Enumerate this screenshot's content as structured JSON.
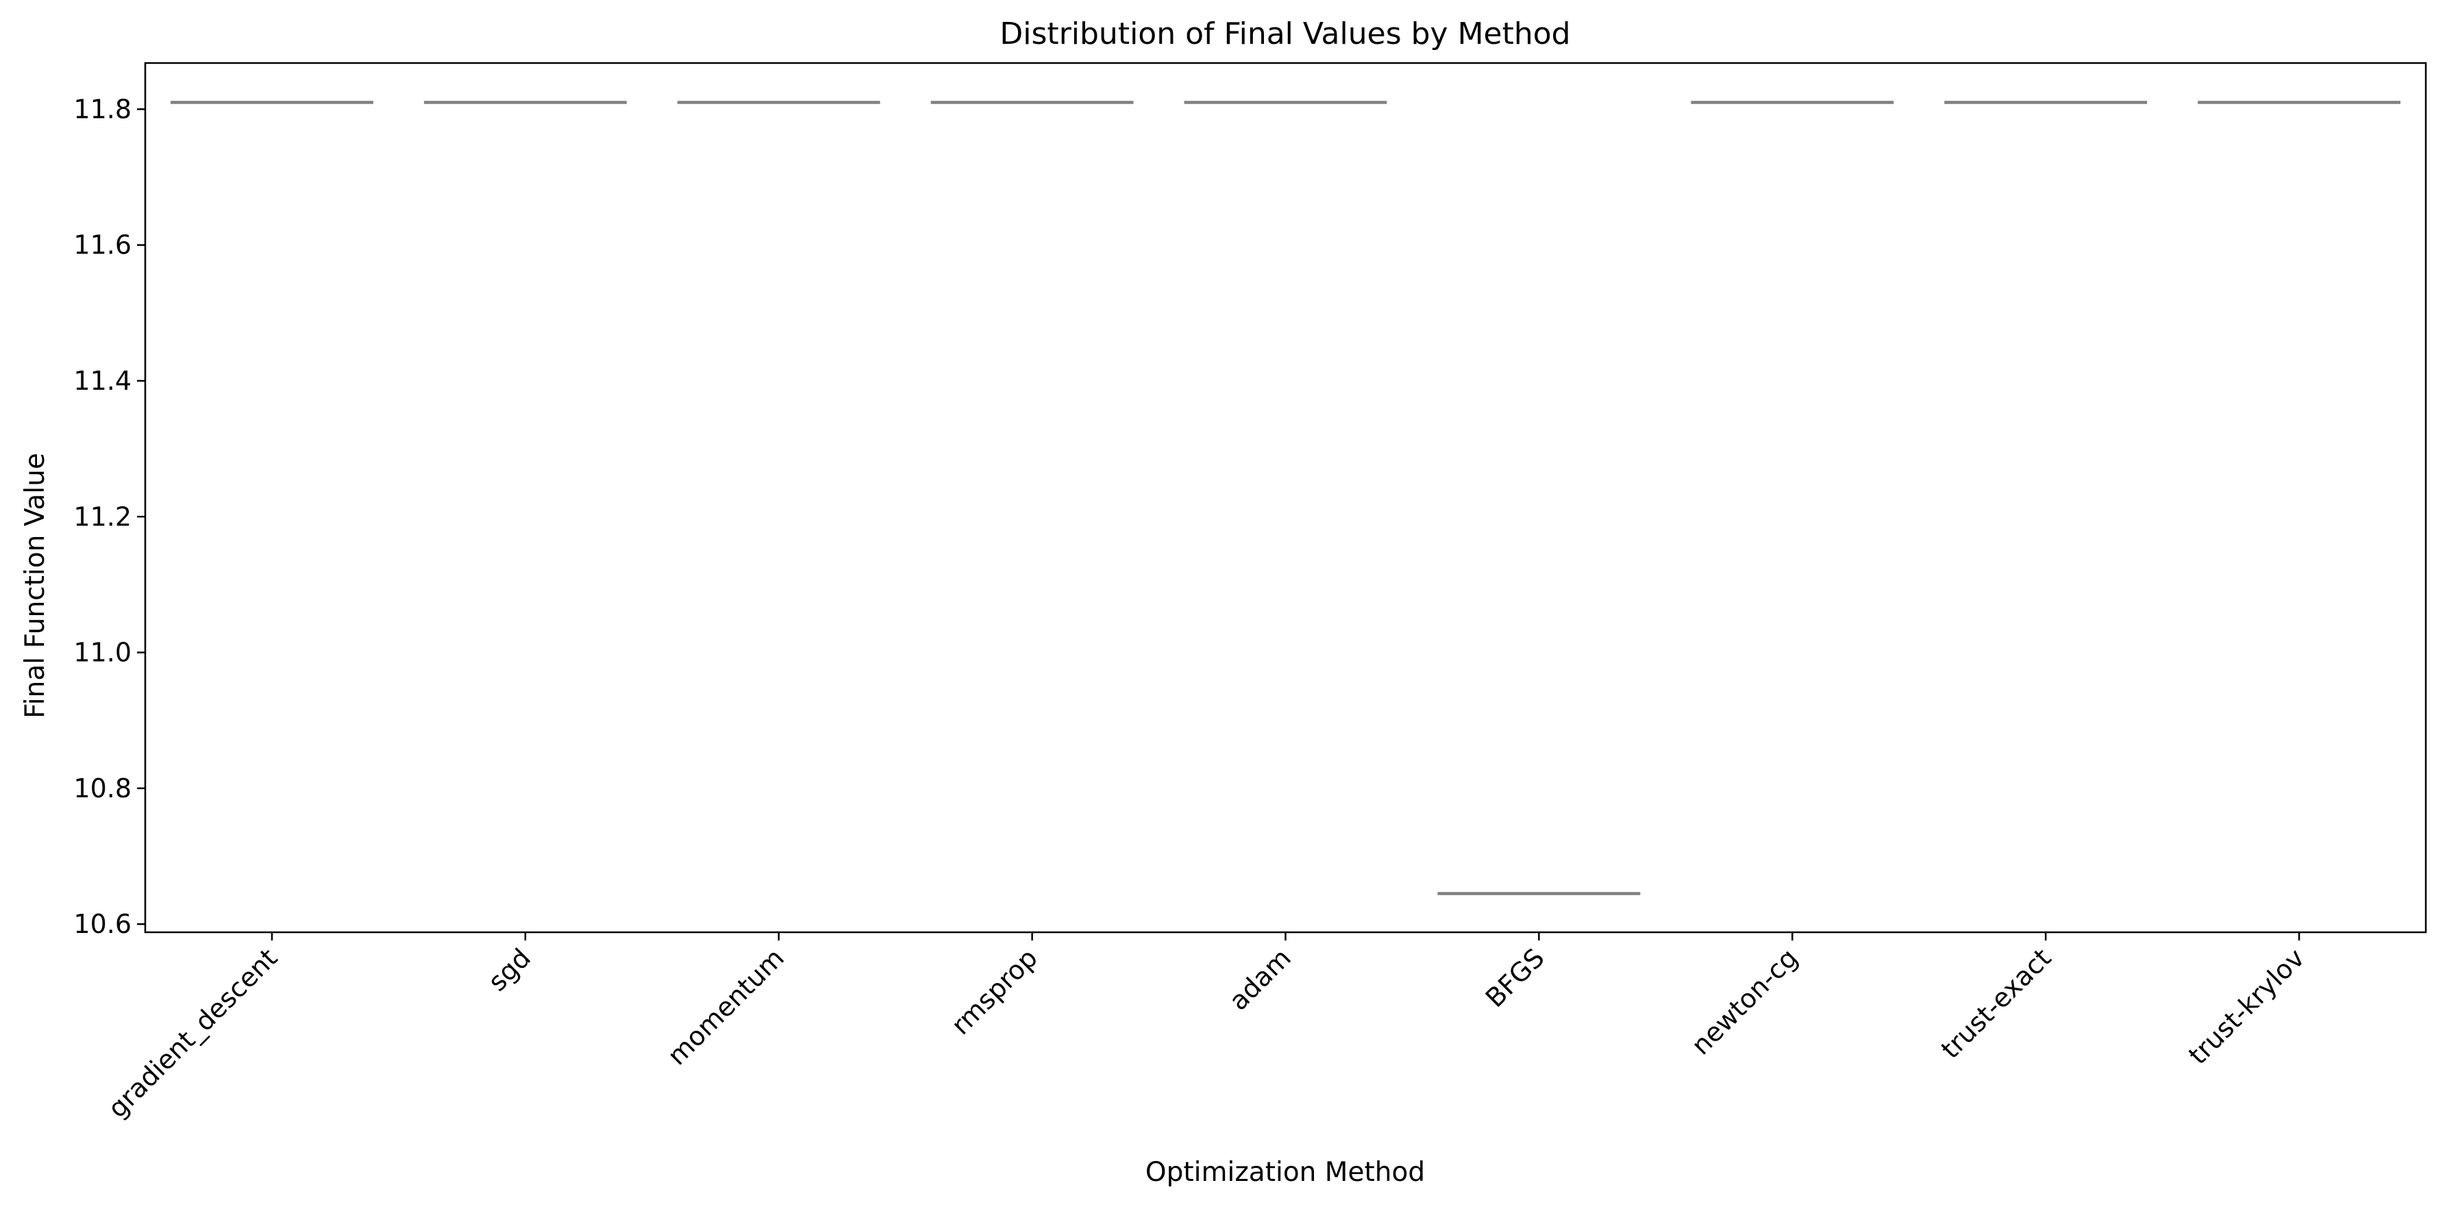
{
  "chart_data": {
    "type": "box",
    "title": "Distribution of Final Values by Method",
    "xlabel": "Optimization Method",
    "ylabel": "Final Function Value",
    "categories": [
      "gradient_descent",
      "sgd",
      "momentum",
      "rmsprop",
      "adam",
      "BFGS",
      "newton-cg",
      "trust-exact",
      "trust-krylov"
    ],
    "values": [
      11.81,
      11.81,
      11.81,
      11.81,
      11.81,
      10.645,
      11.81,
      11.81,
      11.81
    ],
    "ylim": [
      10.588,
      11.868
    ],
    "yticks": [
      10.6,
      10.8,
      11.0,
      11.2,
      11.4,
      11.6,
      11.8
    ],
    "ytick_labels": [
      "10.6",
      "10.8",
      "11.0",
      "11.2",
      "11.4",
      "11.6",
      "11.8"
    ],
    "grid": false,
    "legend": "none",
    "colors": {
      "median_line": "#808080",
      "axes": "#000000",
      "background": "#ffffff"
    }
  }
}
